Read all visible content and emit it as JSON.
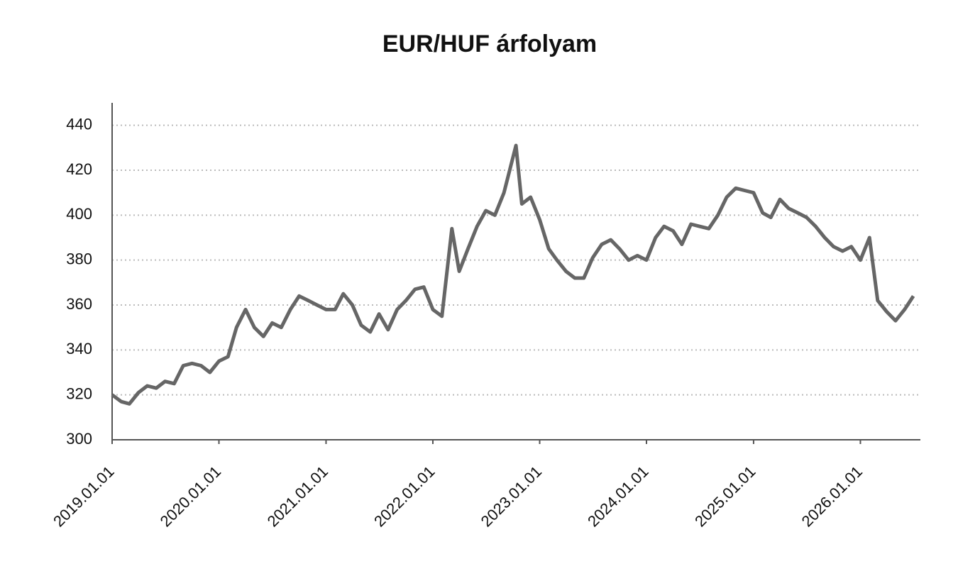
{
  "chart_data": {
    "type": "line",
    "title": "EUR/HUF árfolyam",
    "x": [
      "2019.01.01",
      "2019.02.01",
      "2019.03.01",
      "2019.04.01",
      "2019.05.01",
      "2019.06.01",
      "2019.07.01",
      "2019.08.01",
      "2019.09.01",
      "2019.10.01",
      "2019.11.01",
      "2019.12.01",
      "2020.01.01",
      "2020.02.01",
      "2020.03.01",
      "2020.04.01",
      "2020.05.01",
      "2020.06.01",
      "2020.07.01",
      "2020.08.01",
      "2020.09.01",
      "2020.10.01",
      "2020.11.01",
      "2020.12.01",
      "2021.01.01",
      "2021.02.01",
      "2021.03.01",
      "2021.04.01",
      "2021.05.01",
      "2021.06.01",
      "2021.07.01",
      "2021.08.01",
      "2021.09.01",
      "2021.10.01",
      "2021.11.01",
      "2021.12.01",
      "2022.01.01",
      "2022.02.01",
      "2022.03.07",
      "2022.04.01",
      "2022.05.01",
      "2022.06.01",
      "2022.07.01",
      "2022.08.01",
      "2022.09.01",
      "2022.10.12",
      "2022.11.01",
      "2022.12.01",
      "2023.01.01",
      "2023.02.01",
      "2023.03.01",
      "2023.04.01",
      "2023.05.01",
      "2023.06.01",
      "2023.07.01",
      "2023.08.01",
      "2023.09.01",
      "2023.10.01",
      "2023.11.01",
      "2023.12.01",
      "2024.01.01",
      "2024.02.01",
      "2024.03.01",
      "2024.04.01",
      "2024.05.01",
      "2024.06.01",
      "2024.07.01",
      "2024.08.01",
      "2024.09.01",
      "2024.10.01",
      "2024.11.01",
      "2024.12.01",
      "2025.01.01",
      "2025.02.01",
      "2025.03.01",
      "2025.04.01",
      "2025.05.01",
      "2025.06.01",
      "2025.07.01",
      "2025.08.01",
      "2025.09.01",
      "2025.10.01",
      "2025.11.01",
      "2025.12.01",
      "2026.01.01",
      "2026.02.01",
      "2026.03.01",
      "2026.04.01",
      "2026.05.01",
      "2026.06.01",
      "2026.07.01"
    ],
    "series": [
      {
        "name": "EUR/HUF",
        "color": "#666666",
        "values": [
          320,
          317,
          316,
          321,
          324,
          323,
          326,
          325,
          333,
          334,
          333,
          330,
          335,
          337,
          350,
          358,
          350,
          346,
          352,
          350,
          358,
          364,
          362,
          360,
          358,
          358,
          365,
          360,
          351,
          348,
          356,
          349,
          358,
          362,
          367,
          368,
          358,
          355,
          394,
          375,
          385,
          395,
          402,
          400,
          410,
          431,
          405,
          408,
          398,
          385,
          380,
          375,
          372,
          372,
          381,
          387,
          389,
          385,
          380,
          382,
          380,
          390,
          395,
          393,
          387,
          396,
          395,
          394,
          400,
          408,
          412,
          411,
          410,
          401,
          399,
          407,
          403,
          401,
          399,
          395,
          390,
          386,
          384,
          386,
          380,
          390,
          362,
          357,
          353,
          358,
          364
        ]
      }
    ],
    "xlim": [
      "2019.01.01",
      "2026.07.25"
    ],
    "xticks": [
      "2019.01.01",
      "2020.01.01",
      "2021.01.01",
      "2022.01.01",
      "2023.01.01",
      "2024.01.01",
      "2025.01.01",
      "2026.01.01"
    ],
    "ylim": [
      300,
      450
    ],
    "yticks": [
      300,
      320,
      340,
      360,
      380,
      400,
      420,
      440
    ],
    "grid": true
  }
}
